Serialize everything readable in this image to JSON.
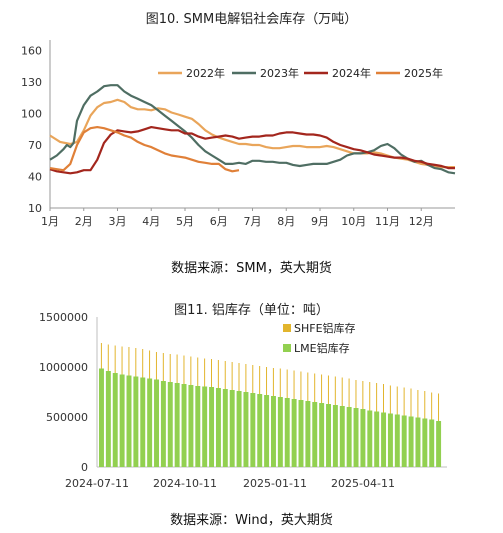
{
  "figures": [
    {
      "title": "图10. SMM电解铝社会库存（万吨）",
      "source": "数据来源：SMM，英大期货"
    },
    {
      "title": "图11. 铝库存（单位：吨）",
      "source": "数据来源：Wind，英大期货"
    }
  ],
  "chart_data": [
    {
      "type": "line",
      "title": "图10. SMM电解铝社会库存（万吨）",
      "xlabel": "",
      "ylabel": "",
      "ylim": [
        10,
        170
      ],
      "yticks": [
        10,
        40,
        70,
        100,
        130,
        160
      ],
      "xlim": [
        1,
        13
      ],
      "x_tick_labels": [
        "1月",
        "2月",
        "3月",
        "4月",
        "5月",
        "6月",
        "7月",
        "8月",
        "9月",
        "10月",
        "11月",
        "12月"
      ],
      "legend_position": "top-right",
      "grid": false,
      "series": [
        {
          "name": "2022年",
          "color": "#E9A55A",
          "points": [
            [
              1.0,
              79
            ],
            [
              1.3,
              73
            ],
            [
              1.6,
              71
            ],
            [
              1.8,
              73
            ],
            [
              2.0,
              84
            ],
            [
              2.2,
              98
            ],
            [
              2.4,
              106
            ],
            [
              2.6,
              110
            ],
            [
              2.8,
              111
            ],
            [
              3.0,
              113
            ],
            [
              3.2,
              111
            ],
            [
              3.4,
              106
            ],
            [
              3.6,
              104
            ],
            [
              3.8,
              104
            ],
            [
              4.0,
              103
            ],
            [
              4.2,
              105
            ],
            [
              4.4,
              104
            ],
            [
              4.6,
              101
            ],
            [
              4.8,
              99
            ],
            [
              5.0,
              97
            ],
            [
              5.2,
              95
            ],
            [
              5.4,
              90
            ],
            [
              5.6,
              84
            ],
            [
              5.8,
              80
            ],
            [
              6.0,
              77
            ],
            [
              6.2,
              75
            ],
            [
              6.4,
              73
            ],
            [
              6.6,
              71
            ],
            [
              6.8,
              71
            ],
            [
              7.0,
              70
            ],
            [
              7.2,
              70
            ],
            [
              7.4,
              68
            ],
            [
              7.6,
              67
            ],
            [
              7.8,
              67
            ],
            [
              8.0,
              68
            ],
            [
              8.2,
              69
            ],
            [
              8.4,
              69
            ],
            [
              8.6,
              68
            ],
            [
              8.8,
              68
            ],
            [
              9.0,
              68
            ],
            [
              9.2,
              69
            ],
            [
              9.4,
              68
            ],
            [
              9.6,
              66
            ],
            [
              9.8,
              64
            ],
            [
              10.0,
              62
            ],
            [
              10.2,
              62
            ],
            [
              10.4,
              62
            ],
            [
              10.6,
              63
            ],
            [
              10.8,
              62
            ],
            [
              11.0,
              60
            ],
            [
              11.2,
              58
            ],
            [
              11.4,
              57
            ],
            [
              11.6,
              56
            ],
            [
              11.8,
              54
            ],
            [
              12.0,
              52
            ],
            [
              12.2,
              51
            ],
            [
              12.4,
              50
            ],
            [
              12.6,
              49
            ],
            [
              12.8,
              49
            ],
            [
              13.0,
              49
            ]
          ]
        },
        {
          "name": "2023年",
          "color": "#4F6E63",
          "points": [
            [
              1.0,
              56
            ],
            [
              1.2,
              60
            ],
            [
              1.4,
              66
            ],
            [
              1.5,
              70
            ],
            [
              1.6,
              68
            ],
            [
              1.7,
              72
            ],
            [
              1.8,
              93
            ],
            [
              2.0,
              108
            ],
            [
              2.2,
              117
            ],
            [
              2.4,
              121
            ],
            [
              2.6,
              126
            ],
            [
              2.8,
              127
            ],
            [
              3.0,
              127
            ],
            [
              3.2,
              121
            ],
            [
              3.4,
              117
            ],
            [
              3.6,
              114
            ],
            [
              3.8,
              111
            ],
            [
              4.0,
              108
            ],
            [
              4.2,
              103
            ],
            [
              4.4,
              98
            ],
            [
              4.6,
              93
            ],
            [
              4.8,
              88
            ],
            [
              5.0,
              83
            ],
            [
              5.2,
              77
            ],
            [
              5.4,
              70
            ],
            [
              5.6,
              64
            ],
            [
              5.8,
              60
            ],
            [
              6.0,
              56
            ],
            [
              6.2,
              52
            ],
            [
              6.4,
              52
            ],
            [
              6.6,
              53
            ],
            [
              6.8,
              52
            ],
            [
              7.0,
              55
            ],
            [
              7.2,
              55
            ],
            [
              7.4,
              54
            ],
            [
              7.6,
              54
            ],
            [
              7.8,
              53
            ],
            [
              8.0,
              53
            ],
            [
              8.2,
              51
            ],
            [
              8.4,
              50
            ],
            [
              8.6,
              51
            ],
            [
              8.8,
              52
            ],
            [
              9.0,
              52
            ],
            [
              9.2,
              52
            ],
            [
              9.4,
              54
            ],
            [
              9.6,
              56
            ],
            [
              9.8,
              60
            ],
            [
              10.0,
              62
            ],
            [
              10.2,
              62
            ],
            [
              10.4,
              63
            ],
            [
              10.6,
              65
            ],
            [
              10.8,
              69
            ],
            [
              11.0,
              71
            ],
            [
              11.2,
              67
            ],
            [
              11.4,
              61
            ],
            [
              11.6,
              57
            ],
            [
              11.8,
              54
            ],
            [
              12.0,
              55
            ],
            [
              12.2,
              51
            ],
            [
              12.4,
              48
            ],
            [
              12.6,
              47
            ],
            [
              12.8,
              44
            ],
            [
              13.0,
              43
            ]
          ]
        },
        {
          "name": "2024年",
          "color": "#A3261D",
          "points": [
            [
              1.0,
              47
            ],
            [
              1.2,
              45
            ],
            [
              1.4,
              44
            ],
            [
              1.6,
              43
            ],
            [
              1.8,
              44
            ],
            [
              2.0,
              46
            ],
            [
              2.2,
              46
            ],
            [
              2.4,
              56
            ],
            [
              2.6,
              72
            ],
            [
              2.8,
              80
            ],
            [
              3.0,
              84
            ],
            [
              3.2,
              83
            ],
            [
              3.4,
              82
            ],
            [
              3.6,
              83
            ],
            [
              3.8,
              85
            ],
            [
              4.0,
              87
            ],
            [
              4.2,
              86
            ],
            [
              4.4,
              85
            ],
            [
              4.6,
              84
            ],
            [
              4.8,
              84
            ],
            [
              5.0,
              81
            ],
            [
              5.2,
              81
            ],
            [
              5.4,
              78
            ],
            [
              5.6,
              76
            ],
            [
              5.8,
              77
            ],
            [
              6.0,
              78
            ],
            [
              6.2,
              79
            ],
            [
              6.4,
              78
            ],
            [
              6.6,
              76
            ],
            [
              6.8,
              77
            ],
            [
              7.0,
              78
            ],
            [
              7.2,
              78
            ],
            [
              7.4,
              79
            ],
            [
              7.6,
              79
            ],
            [
              7.8,
              81
            ],
            [
              8.0,
              82
            ],
            [
              8.2,
              82
            ],
            [
              8.4,
              81
            ],
            [
              8.6,
              80
            ],
            [
              8.8,
              80
            ],
            [
              9.0,
              79
            ],
            [
              9.2,
              77
            ],
            [
              9.4,
              73
            ],
            [
              9.6,
              70
            ],
            [
              9.8,
              68
            ],
            [
              10.0,
              66
            ],
            [
              10.2,
              65
            ],
            [
              10.4,
              63
            ],
            [
              10.6,
              61
            ],
            [
              10.8,
              60
            ],
            [
              11.0,
              59
            ],
            [
              11.2,
              58
            ],
            [
              11.4,
              58
            ],
            [
              11.6,
              57
            ],
            [
              11.8,
              55
            ],
            [
              12.0,
              54
            ],
            [
              12.2,
              52
            ],
            [
              12.4,
              51
            ],
            [
              12.6,
              50
            ],
            [
              12.8,
              48
            ],
            [
              13.0,
              48
            ]
          ]
        },
        {
          "name": "2025年",
          "color": "#E08038",
          "points": [
            [
              1.0,
              48
            ],
            [
              1.2,
              47
            ],
            [
              1.4,
              46
            ],
            [
              1.6,
              52
            ],
            [
              1.8,
              70
            ],
            [
              2.0,
              82
            ],
            [
              2.2,
              86
            ],
            [
              2.4,
              87
            ],
            [
              2.6,
              86
            ],
            [
              2.8,
              84
            ],
            [
              3.0,
              82
            ],
            [
              3.2,
              79
            ],
            [
              3.4,
              77
            ],
            [
              3.6,
              73
            ],
            [
              3.8,
              70
            ],
            [
              4.0,
              68
            ],
            [
              4.2,
              65
            ],
            [
              4.4,
              62
            ],
            [
              4.6,
              60
            ],
            [
              4.8,
              59
            ],
            [
              5.0,
              58
            ],
            [
              5.2,
              56
            ],
            [
              5.4,
              54
            ],
            [
              5.6,
              53
            ],
            [
              5.8,
              52
            ],
            [
              6.0,
              52
            ],
            [
              6.2,
              47
            ],
            [
              6.4,
              45
            ],
            [
              6.6,
              46
            ]
          ]
        }
      ]
    },
    {
      "type": "bar",
      "title": "图11. 铝库存（单位：吨）",
      "xlabel": "",
      "ylabel": "",
      "ylim": [
        0,
        1500000
      ],
      "yticks": [
        0,
        500000,
        1000000,
        1500000
      ],
      "x_tick_labels": [
        "2024-07-11",
        "2024-10-11",
        "2025-01-11",
        "2025-04-11"
      ],
      "legend_position": "top-right",
      "grid": false,
      "series": [
        {
          "name": "SHFE铝库存",
          "color": "#E2B52D",
          "values": [
            1240000,
            1225000,
            1215000,
            1205000,
            1200000,
            1190000,
            1180000,
            1165000,
            1150000,
            1140000,
            1130000,
            1125000,
            1115000,
            1105000,
            1095000,
            1085000,
            1080000,
            1070000,
            1060000,
            1050000,
            1040000,
            1030000,
            1020000,
            1010000,
            1000000,
            990000,
            985000,
            975000,
            965000,
            955000,
            945000,
            935000,
            925000,
            915000,
            905000,
            895000,
            885000,
            870000,
            860000,
            850000,
            840000,
            830000,
            815000,
            805000,
            795000,
            785000,
            770000,
            760000,
            745000,
            735000
          ]
        },
        {
          "name": "LME铝库存",
          "color": "#92D050",
          "values": [
            985000,
            960000,
            940000,
            925000,
            915000,
            905000,
            895000,
            885000,
            875000,
            860000,
            850000,
            840000,
            830000,
            820000,
            810000,
            805000,
            800000,
            790000,
            780000,
            770000,
            760000,
            750000,
            740000,
            730000,
            720000,
            710000,
            700000,
            690000,
            680000,
            670000,
            660000,
            650000,
            640000,
            630000,
            620000,
            610000,
            600000,
            590000,
            580000,
            565000,
            555000,
            545000,
            535000,
            525000,
            515000,
            505000,
            495000,
            485000,
            475000,
            460000
          ]
        }
      ]
    }
  ]
}
